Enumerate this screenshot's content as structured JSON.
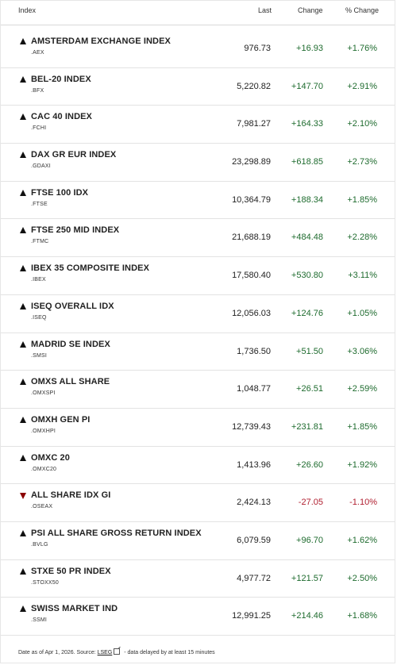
{
  "header": {
    "index": "Index",
    "last": "Last",
    "change": "Change",
    "pct_change": "% Change"
  },
  "rows": [
    {
      "name": "AMSTERDAM EXCHANGE INDEX",
      "ric": ".AEX",
      "last": "976.73",
      "change": "+16.93",
      "pct": "+1.76%",
      "direction": "up"
    },
    {
      "name": "BEL-20 INDEX",
      "ric": ".BFX",
      "last": "5,220.82",
      "change": "+147.70",
      "pct": "+2.91%",
      "direction": "up"
    },
    {
      "name": "CAC 40 INDEX",
      "ric": ".FCHI",
      "last": "7,981.27",
      "change": "+164.33",
      "pct": "+2.10%",
      "direction": "up"
    },
    {
      "name": "DAX GR EUR INDEX",
      "ric": ".GDAXI",
      "last": "23,298.89",
      "change": "+618.85",
      "pct": "+2.73%",
      "direction": "up"
    },
    {
      "name": "FTSE 100 IDX",
      "ric": ".FTSE",
      "last": "10,364.79",
      "change": "+188.34",
      "pct": "+1.85%",
      "direction": "up"
    },
    {
      "name": "FTSE 250 MID INDEX",
      "ric": ".FTMC",
      "last": "21,688.19",
      "change": "+484.48",
      "pct": "+2.28%",
      "direction": "up"
    },
    {
      "name": "IBEX 35 COMPOSITE INDEX",
      "ric": ".IBEX",
      "last": "17,580.40",
      "change": "+530.80",
      "pct": "+3.11%",
      "direction": "up"
    },
    {
      "name": "ISEQ OVERALL IDX",
      "ric": ".ISEQ",
      "last": "12,056.03",
      "change": "+124.76",
      "pct": "+1.05%",
      "direction": "up"
    },
    {
      "name": "MADRID SE INDEX",
      "ric": ".SMSI",
      "last": "1,736.50",
      "change": "+51.50",
      "pct": "+3.06%",
      "direction": "up"
    },
    {
      "name": "OMXS ALL SHARE",
      "ric": ".OMXSPI",
      "last": "1,048.77",
      "change": "+26.51",
      "pct": "+2.59%",
      "direction": "up"
    },
    {
      "name": "OMXH GEN PI",
      "ric": ".OMXHPI",
      "last": "12,739.43",
      "change": "+231.81",
      "pct": "+1.85%",
      "direction": "up"
    },
    {
      "name": "OMXC 20",
      "ric": ".OMXC20",
      "last": "1,413.96",
      "change": "+26.60",
      "pct": "+1.92%",
      "direction": "up"
    },
    {
      "name": "ALL SHARE IDX GI",
      "ric": ".OSEAX",
      "last": "2,424.13",
      "change": "-27.05",
      "pct": "-1.10%",
      "direction": "down"
    },
    {
      "name": "PSI ALL SHARE GROSS RETURN INDEX",
      "ric": ".BVLG",
      "last": "6,079.59",
      "change": "+96.70",
      "pct": "+1.62%",
      "direction": "up"
    },
    {
      "name": "STXE 50 PR INDEX",
      "ric": ".STOXX50",
      "last": "4,977.72",
      "change": "+121.57",
      "pct": "+2.50%",
      "direction": "up"
    },
    {
      "name": "SWISS MARKET IND",
      "ric": ".SSMI",
      "last": "12,991.25",
      "change": "+214.46",
      "pct": "+1.68%",
      "direction": "up"
    }
  ],
  "footer": {
    "prefix": "Date as of Apr 1, 2026. Source: ",
    "source_link": "LSEG",
    "suffix": " - data delayed by at least 15 minutes"
  },
  "colors": {
    "positive": "#1e6b2e",
    "negative": "#b01e2f"
  }
}
